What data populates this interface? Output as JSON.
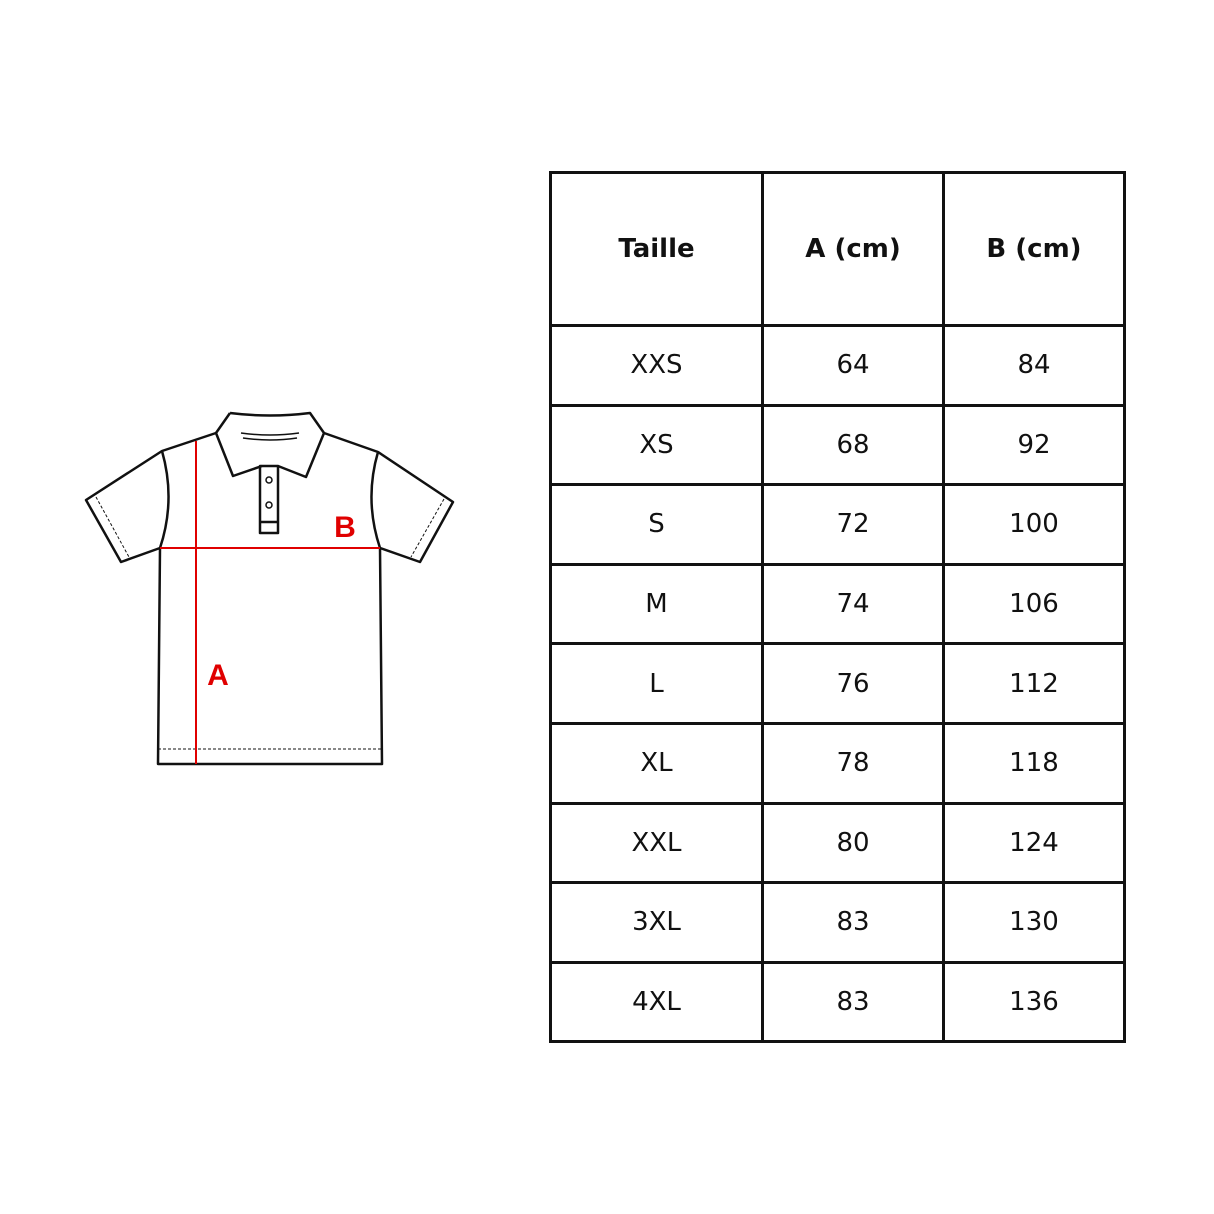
{
  "diagram": {
    "label_a": "A",
    "label_b": "B",
    "measure_color": "#e00000",
    "outline_color": "#111111"
  },
  "table": {
    "headers": [
      "Taille",
      "A (cm)",
      "B (cm)"
    ],
    "rows": [
      [
        "XXS",
        "64",
        "84"
      ],
      [
        "XS",
        "68",
        "92"
      ],
      [
        "S",
        "72",
        "100"
      ],
      [
        "M",
        "74",
        "106"
      ],
      [
        "L",
        "76",
        "112"
      ],
      [
        "XL",
        "78",
        "118"
      ],
      [
        "XXL",
        "80",
        "124"
      ],
      [
        "3XL",
        "83",
        "130"
      ],
      [
        "4XL",
        "83",
        "136"
      ]
    ]
  }
}
